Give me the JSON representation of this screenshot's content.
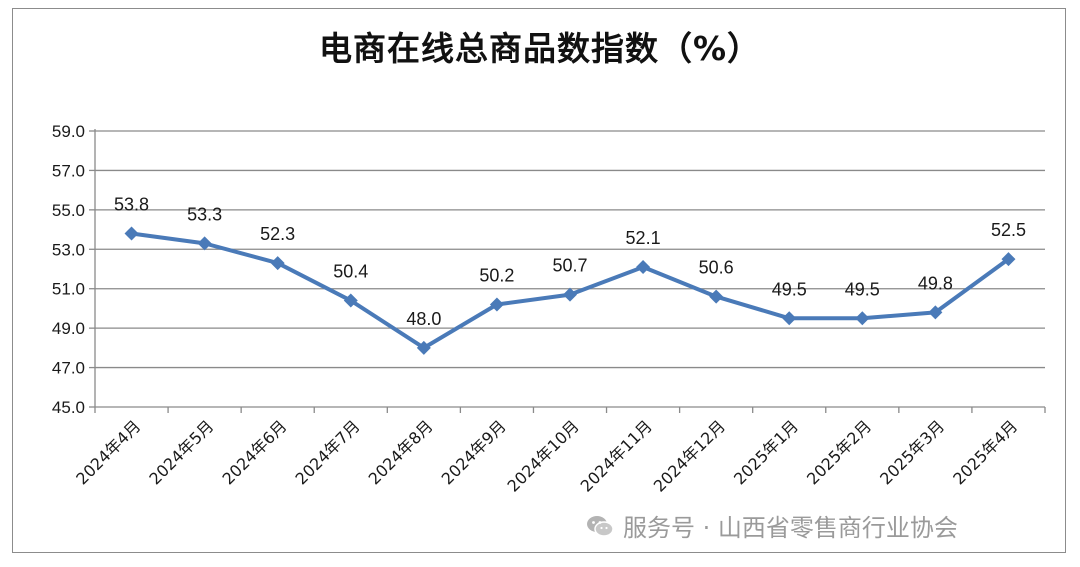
{
  "chart_data": {
    "type": "line",
    "title": "电商在线总商品数指数（%）",
    "categories": [
      "2024年4月",
      "2024年5月",
      "2024年6月",
      "2024年7月",
      "2024年8月",
      "2024年9月",
      "2024年10月",
      "2024年11月",
      "2024年12月",
      "2025年1月",
      "2025年2月",
      "2025年3月",
      "2025年4月"
    ],
    "series": [
      {
        "values": [
          53.8,
          53.3,
          52.3,
          50.4,
          48.0,
          50.2,
          50.7,
          52.1,
          50.6,
          49.5,
          49.5,
          49.8,
          52.5
        ]
      }
    ],
    "data_labels": [
      "53.8",
      "53.3",
      "52.3",
      "50.4",
      "48.0",
      "50.2",
      "50.7",
      "52.1",
      "50.6",
      "49.5",
      "49.5",
      "49.8",
      "52.5"
    ],
    "ylim": [
      45,
      59
    ],
    "yticks": [
      "45.0",
      "47.0",
      "49.0",
      "51.0",
      "53.0",
      "55.0",
      "57.0",
      "59.0"
    ],
    "xlabel": "",
    "ylabel": "",
    "grid": true,
    "legend": "none",
    "line_color": "#4a7ab8",
    "marker": "diamond"
  },
  "watermark": {
    "icon": "wechat-icon",
    "text": "服务号 · 山西省零售商行业协会"
  }
}
